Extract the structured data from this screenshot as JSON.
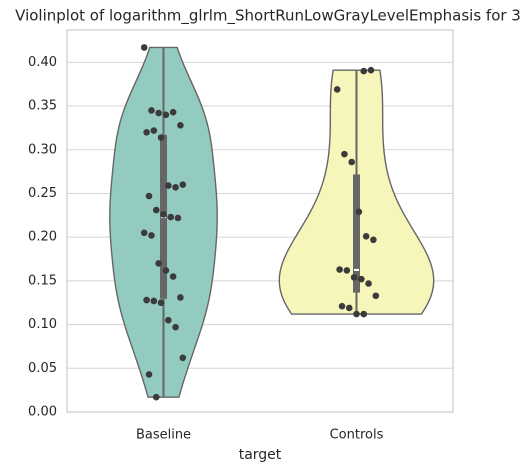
{
  "chart_data": {
    "type": "violin",
    "title": "Violinplot of logarithm_glrlm_ShortRunLowGrayLevelEmphasis for 3",
    "xlabel": "target",
    "categories": [
      "Baseline",
      "Controls"
    ],
    "colors": [
      "#93cbc1",
      "#f7f6ba"
    ],
    "values": [
      [
        0.417,
        0.345,
        0.342,
        0.34,
        0.343,
        0.328,
        0.32,
        0.322,
        0.314,
        0.259,
        0.257,
        0.26,
        0.247,
        0.231,
        0.226,
        0.223,
        0.222,
        0.205,
        0.202,
        0.17,
        0.162,
        0.155,
        0.131,
        0.128,
        0.127,
        0.125,
        0.105,
        0.097,
        0.062,
        0.043,
        0.017
      ],
      [
        0.39,
        0.391,
        0.369,
        0.295,
        0.286,
        0.229,
        0.201,
        0.197,
        0.163,
        0.162,
        0.154,
        0.152,
        0.147,
        0.133,
        0.121,
        0.119,
        0.112,
        0.112
      ]
    ],
    "ylim": [
      0,
      0.437
    ],
    "yticks": [
      {
        "value": 0,
        "label": "0.00"
      },
      {
        "value": 0.05,
        "label": "0.05"
      },
      {
        "value": 0.1,
        "label": "0.10"
      },
      {
        "value": 0.15,
        "label": "0.15"
      },
      {
        "value": 0.2,
        "label": "0.20"
      },
      {
        "value": 0.25,
        "label": "0.25"
      },
      {
        "value": 0.3,
        "label": "0.30"
      },
      {
        "value": 0.35,
        "label": "0.35"
      },
      {
        "value": 0.4,
        "label": "0.40"
      }
    ],
    "grid": true
  }
}
